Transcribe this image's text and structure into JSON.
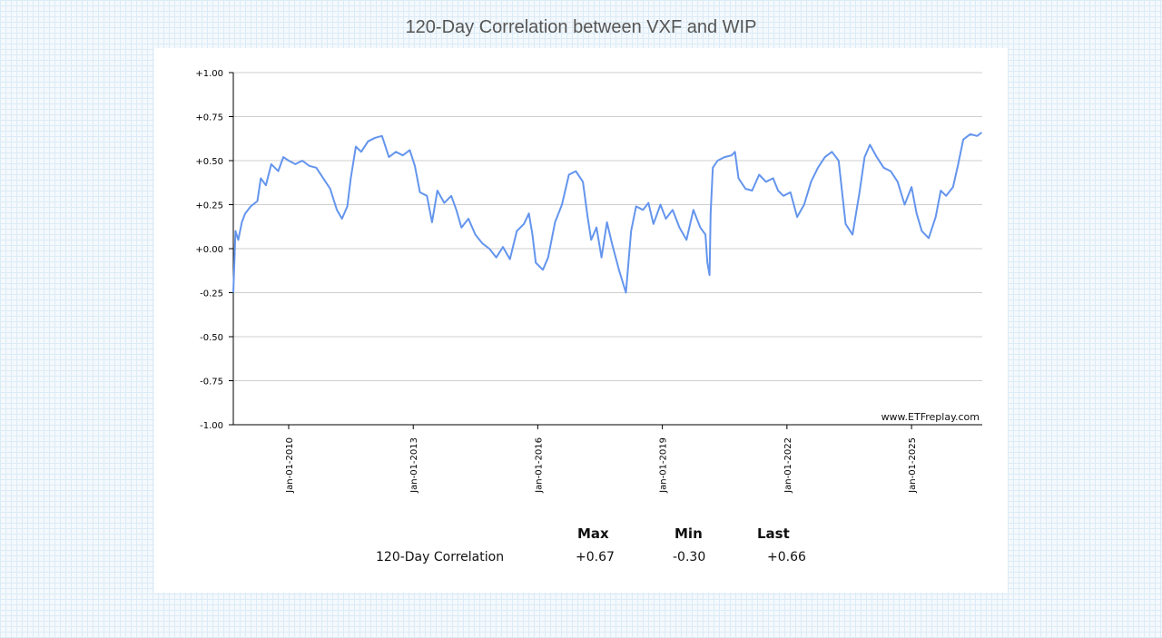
{
  "title": "120-Day Correlation between VXF and WIP",
  "chart_data": {
    "type": "line",
    "title": "120-Day Correlation between VXF and WIP",
    "ylim": [
      -1.0,
      1.0
    ],
    "yticks": [
      "+1.00",
      "+0.75",
      "+0.50",
      "+0.25",
      "+0.00",
      "-0.25",
      "-0.50",
      "-0.75",
      "-1.00"
    ],
    "xlim": [
      "2008-09-01",
      "2026-09-15"
    ],
    "xticks": [
      "Jan-01-2010",
      "Jan-01-2013",
      "Jan-01-2016",
      "Jan-01-2019",
      "Jan-01-2022",
      "Jan-01-2025"
    ],
    "grid": true,
    "line_color": "#6495ED",
    "watermark": "www.ETFreplay.com",
    "series": [
      {
        "points": [
          [
            "2008-09-01",
            -0.25
          ],
          [
            "2008-09-20",
            0.1
          ],
          [
            "2008-10-15",
            0.05
          ],
          [
            "2008-11-15",
            0.15
          ],
          [
            "2008-12-15",
            0.2
          ],
          [
            "2009-02-01",
            0.24
          ],
          [
            "2009-04-01",
            0.27
          ],
          [
            "2009-05-01",
            0.4
          ],
          [
            "2009-06-15",
            0.36
          ],
          [
            "2009-08-01",
            0.48
          ],
          [
            "2009-10-01",
            0.44
          ],
          [
            "2009-11-15",
            0.52
          ],
          [
            "2010-01-01",
            0.5
          ],
          [
            "2010-03-01",
            0.48
          ],
          [
            "2010-05-01",
            0.5
          ],
          [
            "2010-07-01",
            0.47
          ],
          [
            "2010-09-01",
            0.46
          ],
          [
            "2010-11-01",
            0.4
          ],
          [
            "2011-01-01",
            0.34
          ],
          [
            "2011-03-01",
            0.22
          ],
          [
            "2011-04-15",
            0.17
          ],
          [
            "2011-06-01",
            0.24
          ],
          [
            "2011-07-01",
            0.4
          ],
          [
            "2011-08-15",
            0.58
          ],
          [
            "2011-10-01",
            0.55
          ],
          [
            "2011-12-01",
            0.61
          ],
          [
            "2012-02-01",
            0.63
          ],
          [
            "2012-04-01",
            0.64
          ],
          [
            "2012-06-01",
            0.52
          ],
          [
            "2012-08-01",
            0.55
          ],
          [
            "2012-10-01",
            0.53
          ],
          [
            "2012-12-01",
            0.56
          ],
          [
            "2013-01-15",
            0.47
          ],
          [
            "2013-03-01",
            0.32
          ],
          [
            "2013-05-01",
            0.3
          ],
          [
            "2013-06-15",
            0.15
          ],
          [
            "2013-08-01",
            0.33
          ],
          [
            "2013-10-01",
            0.26
          ],
          [
            "2013-12-01",
            0.3
          ],
          [
            "2014-01-15",
            0.22
          ],
          [
            "2014-03-01",
            0.12
          ],
          [
            "2014-05-01",
            0.17
          ],
          [
            "2014-07-01",
            0.08
          ],
          [
            "2014-09-01",
            0.03
          ],
          [
            "2014-11-01",
            0.0
          ],
          [
            "2015-01-01",
            -0.05
          ],
          [
            "2015-03-01",
            0.01
          ],
          [
            "2015-05-01",
            -0.06
          ],
          [
            "2015-07-01",
            0.1
          ],
          [
            "2015-09-01",
            0.14
          ],
          [
            "2015-10-15",
            0.2
          ],
          [
            "2015-11-15",
            0.08
          ],
          [
            "2015-12-15",
            -0.08
          ],
          [
            "2016-02-15",
            -0.12
          ],
          [
            "2016-04-01",
            -0.05
          ],
          [
            "2016-06-01",
            0.15
          ],
          [
            "2016-08-01",
            0.25
          ],
          [
            "2016-10-01",
            0.42
          ],
          [
            "2016-12-01",
            0.44
          ],
          [
            "2017-02-01",
            0.38
          ],
          [
            "2017-03-15",
            0.18
          ],
          [
            "2017-04-15",
            0.05
          ],
          [
            "2017-06-01",
            0.12
          ],
          [
            "2017-07-15",
            -0.05
          ],
          [
            "2017-09-01",
            0.15
          ],
          [
            "2017-10-15",
            0.03
          ],
          [
            "2017-12-15",
            -0.12
          ],
          [
            "2018-02-15",
            -0.25
          ],
          [
            "2018-04-01",
            0.1
          ],
          [
            "2018-05-15",
            0.24
          ],
          [
            "2018-07-15",
            0.22
          ],
          [
            "2018-09-01",
            0.26
          ],
          [
            "2018-10-15",
            0.14
          ],
          [
            "2018-12-15",
            0.25
          ],
          [
            "2019-02-01",
            0.17
          ],
          [
            "2019-04-01",
            0.22
          ],
          [
            "2019-06-01",
            0.12
          ],
          [
            "2019-08-01",
            0.05
          ],
          [
            "2019-10-01",
            0.22
          ],
          [
            "2019-12-01",
            0.12
          ],
          [
            "2020-01-15",
            0.08
          ],
          [
            "2020-02-01",
            -0.08
          ],
          [
            "2020-02-20",
            -0.15
          ],
          [
            "2020-03-01",
            0.2
          ],
          [
            "2020-03-20",
            0.46
          ],
          [
            "2020-05-01",
            0.5
          ],
          [
            "2020-07-01",
            0.52
          ],
          [
            "2020-09-01",
            0.53
          ],
          [
            "2020-10-01",
            0.55
          ],
          [
            "2020-11-01",
            0.4
          ],
          [
            "2021-01-01",
            0.34
          ],
          [
            "2021-03-01",
            0.33
          ],
          [
            "2021-05-01",
            0.42
          ],
          [
            "2021-07-01",
            0.38
          ],
          [
            "2021-09-01",
            0.4
          ],
          [
            "2021-10-15",
            0.33
          ],
          [
            "2021-12-01",
            0.3
          ],
          [
            "2022-02-01",
            0.32
          ],
          [
            "2022-04-01",
            0.18
          ],
          [
            "2022-06-01",
            0.25
          ],
          [
            "2022-08-01",
            0.38
          ],
          [
            "2022-10-01",
            0.46
          ],
          [
            "2022-12-01",
            0.52
          ],
          [
            "2023-02-01",
            0.55
          ],
          [
            "2023-04-01",
            0.5
          ],
          [
            "2023-06-01",
            0.14
          ],
          [
            "2023-08-01",
            0.08
          ],
          [
            "2023-10-01",
            0.32
          ],
          [
            "2023-11-15",
            0.52
          ],
          [
            "2024-01-01",
            0.59
          ],
          [
            "2024-03-01",
            0.52
          ],
          [
            "2024-05-01",
            0.46
          ],
          [
            "2024-07-01",
            0.44
          ],
          [
            "2024-09-01",
            0.38
          ],
          [
            "2024-11-01",
            0.25
          ],
          [
            "2025-01-01",
            0.35
          ],
          [
            "2025-02-15",
            0.2
          ],
          [
            "2025-04-01",
            0.1
          ],
          [
            "2025-06-01",
            0.06
          ],
          [
            "2025-08-01",
            0.18
          ],
          [
            "2025-09-15",
            0.33
          ],
          [
            "2025-11-01",
            0.3
          ],
          [
            "2026-01-01",
            0.35
          ],
          [
            "2026-02-15",
            0.48
          ],
          [
            "2026-04-01",
            0.62
          ],
          [
            "2026-06-01",
            0.65
          ],
          [
            "2026-08-01",
            0.64
          ],
          [
            "2026-09-10",
            0.66
          ]
        ]
      }
    ]
  },
  "stats": {
    "headers": {
      "max": "Max",
      "min": "Min",
      "last": "Last"
    },
    "row_label": "120-Day Correlation",
    "max": "+0.67",
    "min": "-0.30",
    "last": "+0.66"
  }
}
